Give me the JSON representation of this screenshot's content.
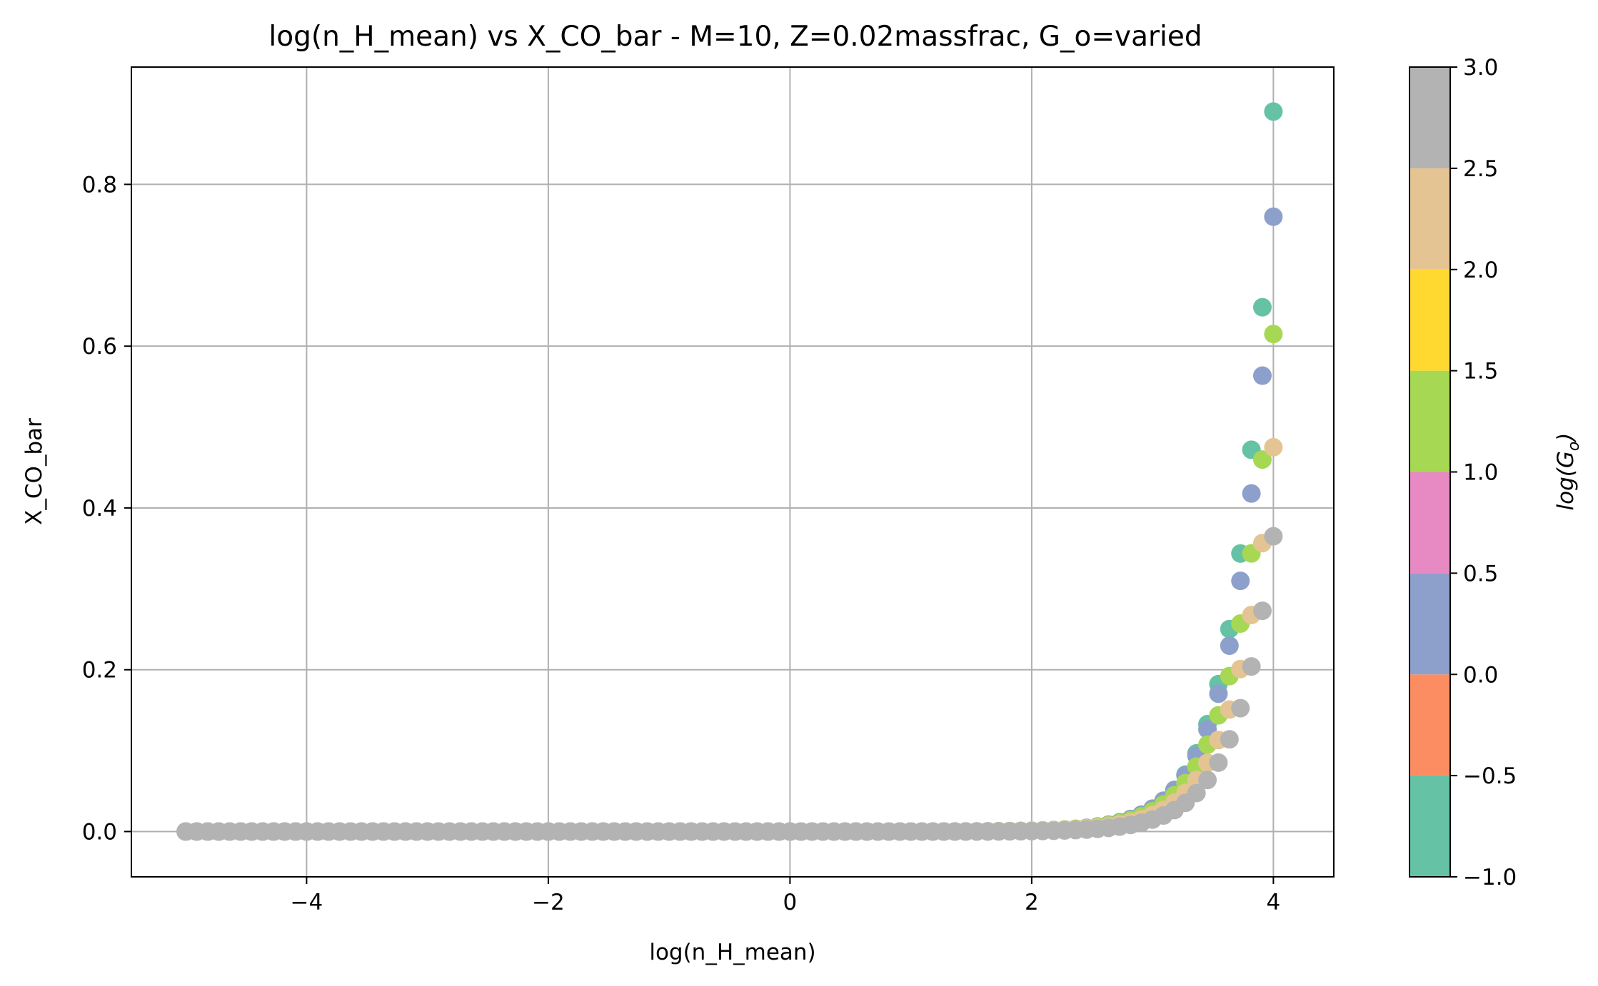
{
  "chart_data": {
    "type": "scatter",
    "title": "log(n_H_mean) vs X_CO_bar - M=10, Z=0.02massfrac, G_o=varied",
    "xlabel": "log(n_H_mean)",
    "ylabel": "X_CO_bar",
    "xlim": [
      -5.45,
      4.5
    ],
    "ylim": [
      -0.056,
      0.945
    ],
    "x_ticks": [
      -4,
      -2,
      0,
      2,
      4
    ],
    "x_tick_labels": [
      "−4",
      "−2",
      "0",
      "2",
      "4"
    ],
    "y_ticks": [
      0.0,
      0.2,
      0.4,
      0.6,
      0.8
    ],
    "y_tick_labels": [
      "0.0",
      "0.2",
      "0.4",
      "0.6",
      "0.8"
    ],
    "grid": true,
    "x_range": [
      -5.0,
      4.0
    ],
    "points_per_series": 100,
    "series": [
      {
        "log_Go": -1.0,
        "color": "#66c2a5",
        "ymax": 0.89,
        "scale": 0.66,
        "threshold": 0.9
      },
      {
        "log_Go": 0.0,
        "color": "#8da0cb",
        "ymax": 0.76,
        "scale": 0.7,
        "threshold": 1.05
      },
      {
        "log_Go": 1.0,
        "color": "#a6d854",
        "ymax": 0.615,
        "scale": 0.72,
        "threshold": 1.2
      },
      {
        "log_Go": 2.0,
        "color": "#e5c494",
        "ymax": 0.475,
        "scale": 0.73,
        "threshold": 1.35
      },
      {
        "log_Go": 3.0,
        "color": "#b3b3b3",
        "ymax": 0.365,
        "scale": 0.72,
        "threshold": 1.5
      }
    ],
    "colorbar": {
      "label": "log(G_o)",
      "label_main": "log(G",
      "label_sub": "o",
      "label_close": ")",
      "range": [
        -1.0,
        3.0
      ],
      "ticks": [
        -1.0,
        -0.5,
        0.0,
        0.5,
        1.0,
        1.5,
        2.0,
        2.5,
        3.0
      ],
      "tick_labels": [
        "−1.0",
        "−0.5",
        "0.0",
        "0.5",
        "1.0",
        "1.5",
        "2.0",
        "2.5",
        "3.0"
      ],
      "segments": [
        {
          "from": -1.0,
          "to": -0.5,
          "color": "#66c2a5"
        },
        {
          "from": -0.5,
          "to": 0.0,
          "color": "#fc8d62"
        },
        {
          "from": 0.0,
          "to": 0.5,
          "color": "#8da0cb"
        },
        {
          "from": 0.5,
          "to": 1.0,
          "color": "#e78ac3"
        },
        {
          "from": 1.0,
          "to": 1.5,
          "color": "#a6d854"
        },
        {
          "from": 1.5,
          "to": 2.0,
          "color": "#ffd92f"
        },
        {
          "from": 2.0,
          "to": 2.5,
          "color": "#e5c494"
        },
        {
          "from": 2.5,
          "to": 3.0,
          "color": "#b3b3b3"
        }
      ]
    }
  }
}
